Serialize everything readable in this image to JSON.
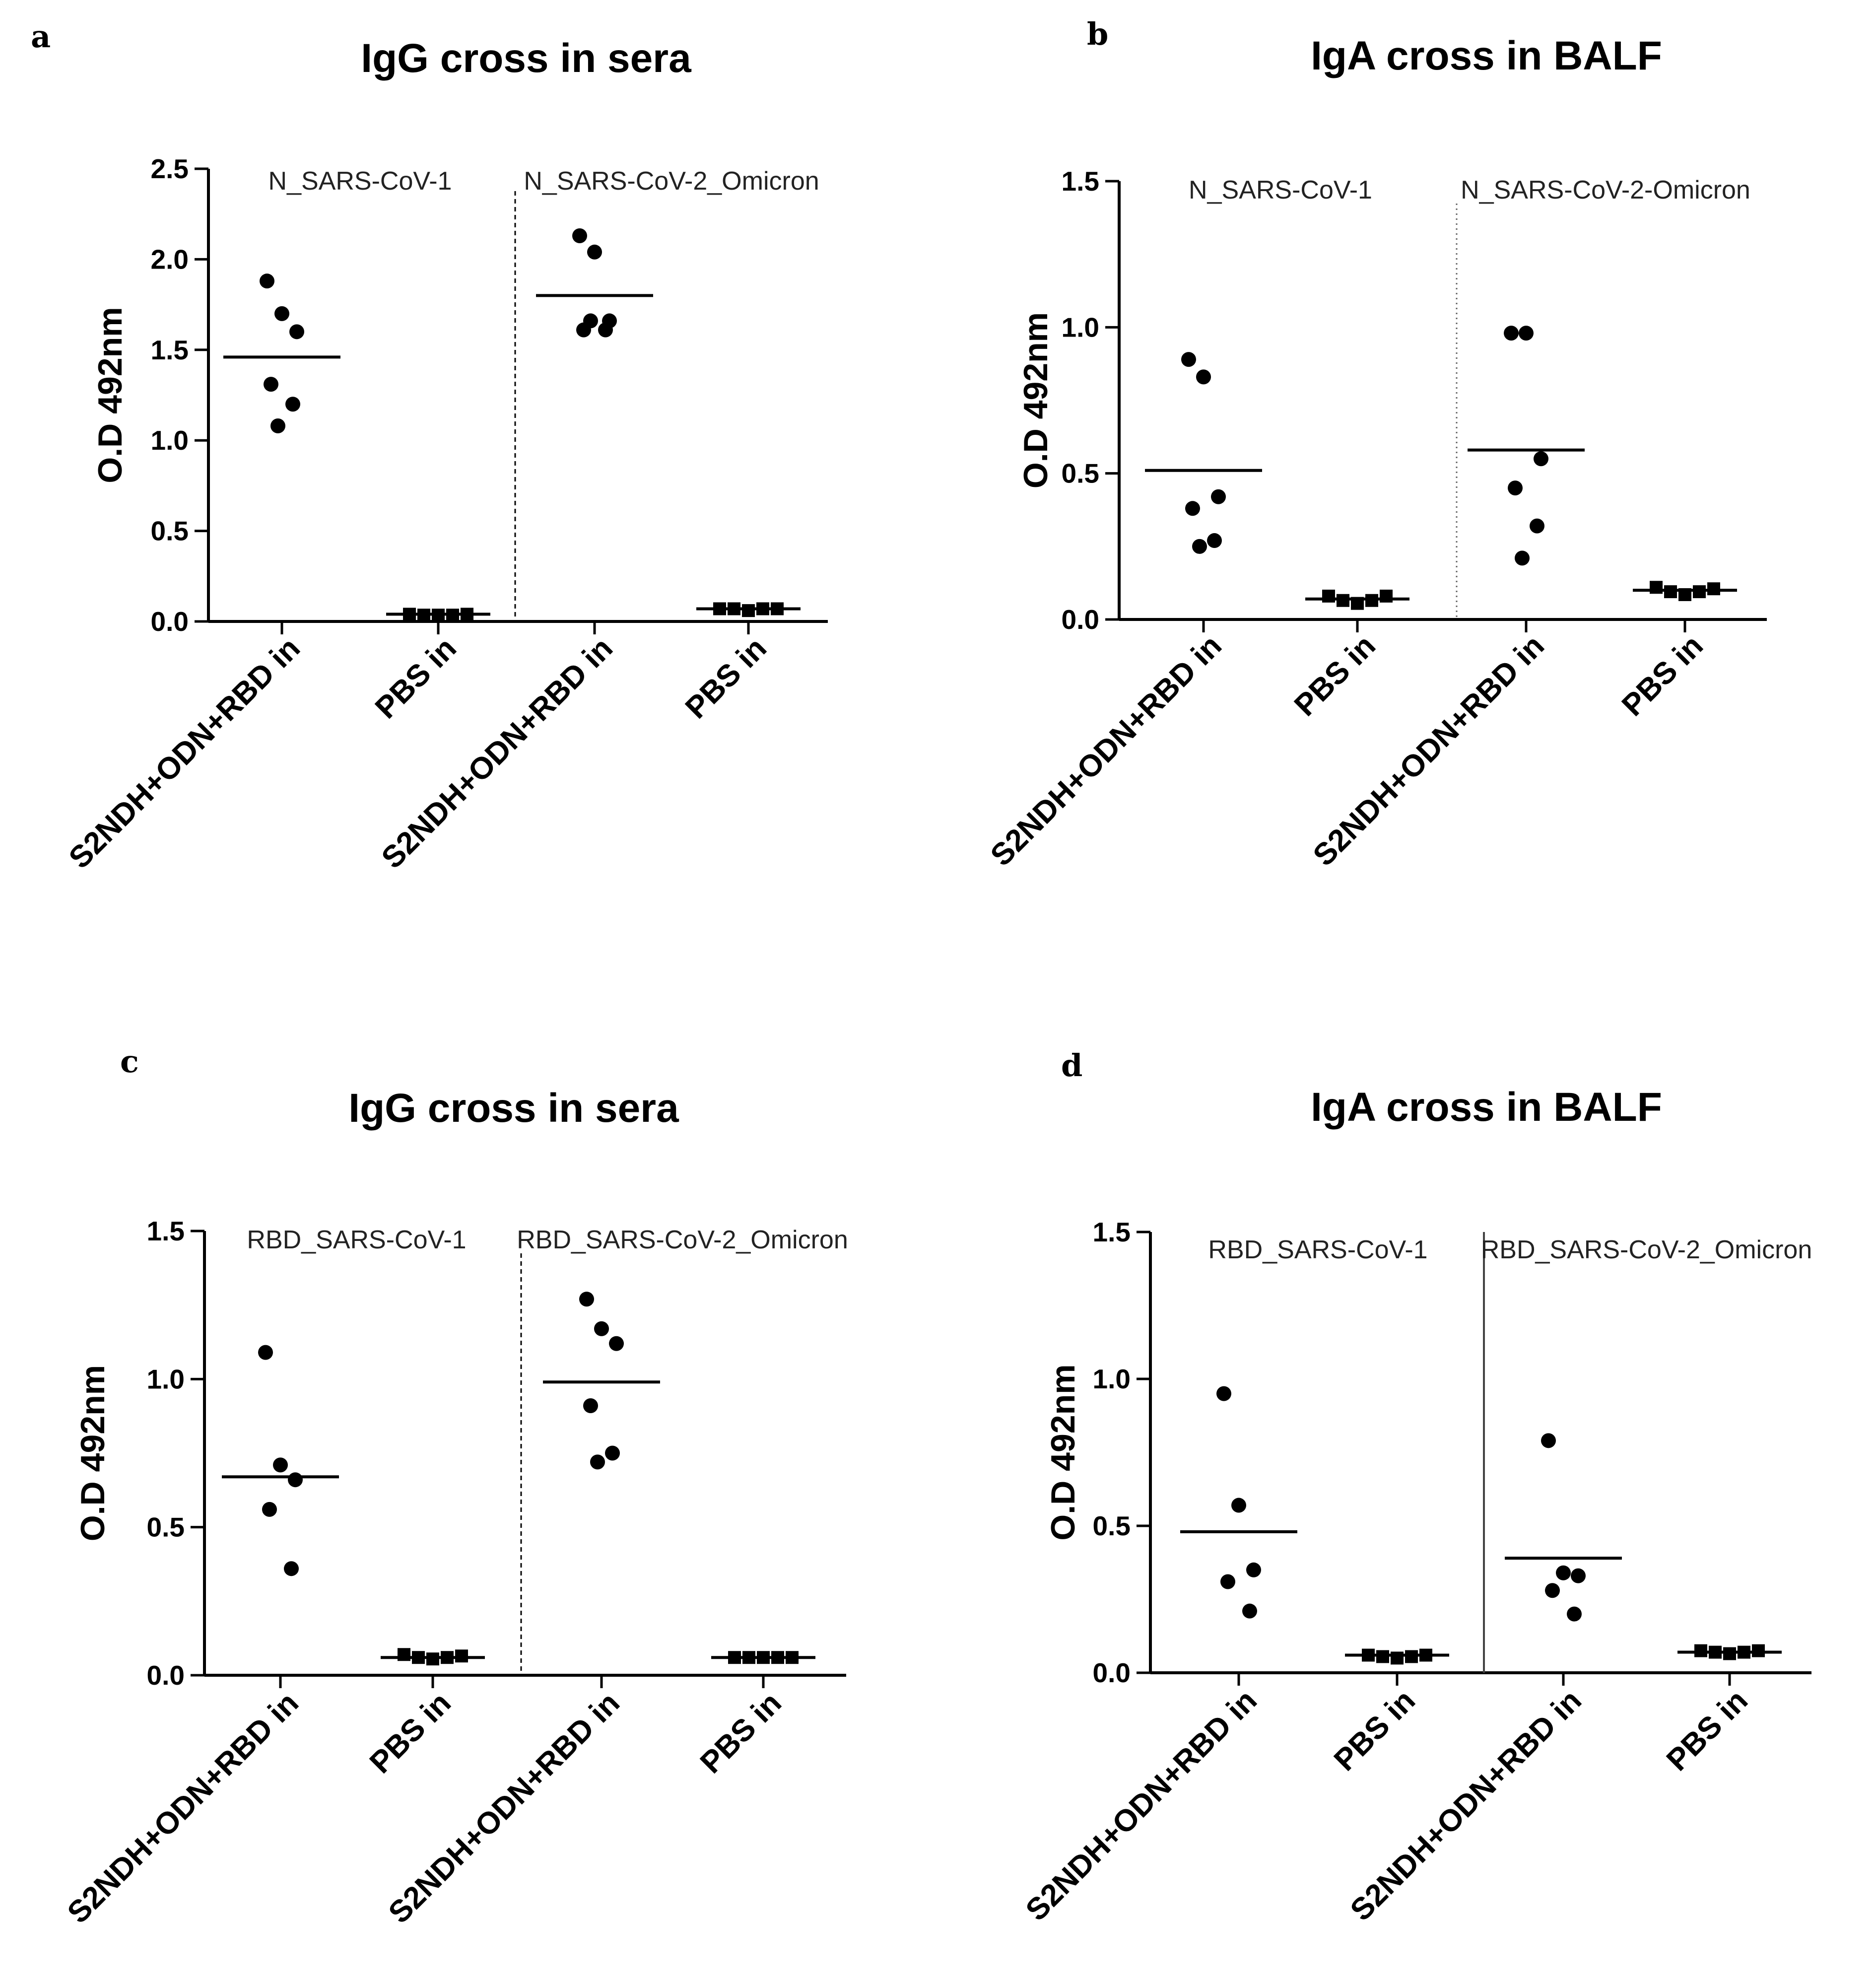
{
  "panels": [
    {
      "letter": "a",
      "chart_data": {
        "type": "scatter",
        "title": "IgG cross in sera",
        "ylabel": "O.D 492nm",
        "ylim": [
          0,
          2.5
        ],
        "yticks": [
          0.0,
          0.5,
          1.0,
          1.5,
          2.0,
          2.5
        ],
        "ytick_labels": [
          "0.0",
          "0.5",
          "1.0",
          "1.5",
          "2.0",
          "2.5"
        ],
        "divider": "dashed",
        "groups": [
          {
            "label": "N_SARS-CoV-1",
            "categories": [
              {
                "label": "S2NDH+ODN+RBD in",
                "marker": "circle",
                "mean": 1.46,
                "values": [
                  1.88,
                  1.7,
                  1.6,
                  1.31,
                  1.2,
                  1.08
                ]
              },
              {
                "label": "PBS in",
                "marker": "square",
                "mean": 0.04,
                "values": [
                  0.04,
                  0.035,
                  0.035,
                  0.035,
                  0.04
                ]
              }
            ]
          },
          {
            "label": "N_SARS-CoV-2_Omicron",
            "categories": [
              {
                "label": "S2NDH+ODN+RBD in",
                "marker": "circle",
                "mean": 1.8,
                "values": [
                  2.13,
                  2.04,
                  1.66,
                  1.61,
                  1.61,
                  1.66
                ]
              },
              {
                "label": "PBS in",
                "marker": "square",
                "mean": 0.07,
                "values": [
                  0.07,
                  0.07,
                  0.06,
                  0.07,
                  0.07
                ]
              }
            ]
          }
        ]
      }
    },
    {
      "letter": "b",
      "chart_data": {
        "type": "scatter",
        "title": "IgA cross in BALF",
        "ylabel": "O.D 492nm",
        "ylim": [
          0,
          1.5
        ],
        "yticks": [
          0.0,
          0.5,
          1.0,
          1.5
        ],
        "ytick_labels": [
          "0.0",
          "0.5",
          "1.0",
          "1.5"
        ],
        "divider": "dotted",
        "groups": [
          {
            "label": "N_SARS-CoV-1",
            "categories": [
              {
                "label": "S2NDH+ODN+RBD in",
                "marker": "circle",
                "mean": 0.51,
                "values": [
                  0.89,
                  0.83,
                  0.42,
                  0.38,
                  0.27,
                  0.25
                ]
              },
              {
                "label": "PBS in",
                "marker": "square",
                "mean": 0.07,
                "values": [
                  0.08,
                  0.065,
                  0.055,
                  0.065,
                  0.08
                ]
              }
            ]
          },
          {
            "label": "N_SARS-CoV-2-Omicron",
            "categories": [
              {
                "label": "S2NDH+ODN+RBD in",
                "marker": "circle",
                "mean": 0.58,
                "values": [
                  0.98,
                  0.98,
                  0.55,
                  0.45,
                  0.32,
                  0.21
                ]
              },
              {
                "label": "PBS in",
                "marker": "square",
                "mean": 0.1,
                "values": [
                  0.11,
                  0.095,
                  0.085,
                  0.095,
                  0.105
                ]
              }
            ]
          }
        ]
      }
    },
    {
      "letter": "c",
      "chart_data": {
        "type": "scatter",
        "title": "IgG cross in sera",
        "ylabel": "O.D 492nm",
        "ylim": [
          0,
          1.5
        ],
        "yticks": [
          0.0,
          0.5,
          1.0,
          1.5
        ],
        "ytick_labels": [
          "0.0",
          "0.5",
          "1.0",
          "1.5"
        ],
        "divider": "dashed",
        "groups": [
          {
            "label": "RBD_SARS-CoV-1",
            "categories": [
              {
                "label": "S2NDH+ODN+RBD in",
                "marker": "circle",
                "mean": 0.67,
                "values": [
                  1.09,
                  0.71,
                  0.66,
                  0.56,
                  0.36
                ]
              },
              {
                "label": "PBS in",
                "marker": "square",
                "mean": 0.06,
                "values": [
                  0.07,
                  0.06,
                  0.055,
                  0.06,
                  0.065
                ]
              }
            ]
          },
          {
            "label": "RBD_SARS-CoV-2_Omicron",
            "categories": [
              {
                "label": "S2NDH+ODN+RBD in",
                "marker": "circle",
                "mean": 0.99,
                "values": [
                  1.27,
                  1.17,
                  1.12,
                  0.91,
                  0.75,
                  0.72
                ]
              },
              {
                "label": "PBS in",
                "marker": "square",
                "mean": 0.06,
                "values": [
                  0.06,
                  0.06,
                  0.06,
                  0.06,
                  0.06
                ]
              }
            ]
          }
        ]
      }
    },
    {
      "letter": "d",
      "chart_data": {
        "type": "scatter",
        "title": "IgA cross in BALF",
        "ylabel": "O.D 492nm",
        "ylim": [
          0,
          1.5
        ],
        "yticks": [
          0.0,
          0.5,
          1.0,
          1.5
        ],
        "ytick_labels": [
          "0.0",
          "0.5",
          "1.0",
          "1.5"
        ],
        "divider": "solid",
        "groups": [
          {
            "label": "RBD_SARS-CoV-1",
            "categories": [
              {
                "label": "S2NDH+ODN+RBD in",
                "marker": "circle",
                "mean": 0.48,
                "values": [
                  0.95,
                  0.57,
                  0.35,
                  0.31,
                  0.21
                ]
              },
              {
                "label": "PBS in",
                "marker": "square",
                "mean": 0.06,
                "values": [
                  0.06,
                  0.055,
                  0.05,
                  0.055,
                  0.06
                ]
              }
            ]
          },
          {
            "label": "RBD_SARS-CoV-2_Omicron",
            "categories": [
              {
                "label": "S2NDH+ODN+RBD in",
                "marker": "circle",
                "mean": 0.39,
                "values": [
                  0.79,
                  0.34,
                  0.33,
                  0.28,
                  0.2
                ]
              },
              {
                "label": "PBS in",
                "marker": "square",
                "mean": 0.07,
                "values": [
                  0.075,
                  0.07,
                  0.065,
                  0.07,
                  0.075
                ]
              }
            ]
          }
        ]
      }
    }
  ]
}
